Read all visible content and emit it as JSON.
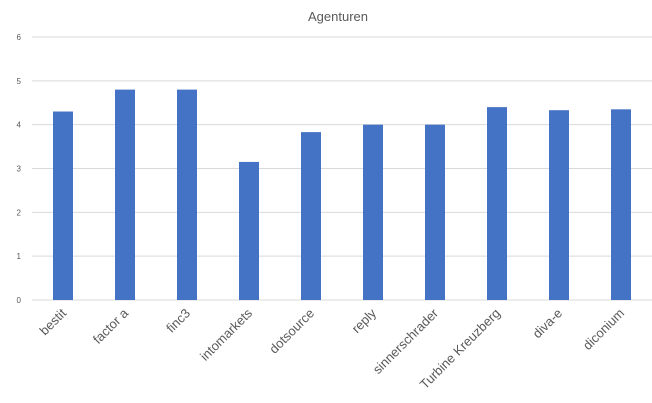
{
  "chart_data": {
    "type": "bar",
    "title": "Agenturen",
    "xlabel": "",
    "ylabel": "",
    "categories": [
      "bestit",
      "factor a",
      "finc3",
      "intomarkets",
      "dotsource",
      "reply",
      "sinnerschrader",
      "Turbine Kreuzberg",
      "diva-e",
      "diconium"
    ],
    "values": [
      4.3,
      4.8,
      4.8,
      3.15,
      3.83,
      4.0,
      4.0,
      4.4,
      4.33,
      4.35
    ],
    "ylim": [
      0,
      6
    ],
    "yticks": [
      0,
      1,
      2,
      3,
      4,
      5,
      6
    ],
    "grid": true,
    "legend": "none",
    "bar_color": "#4472c4"
  }
}
